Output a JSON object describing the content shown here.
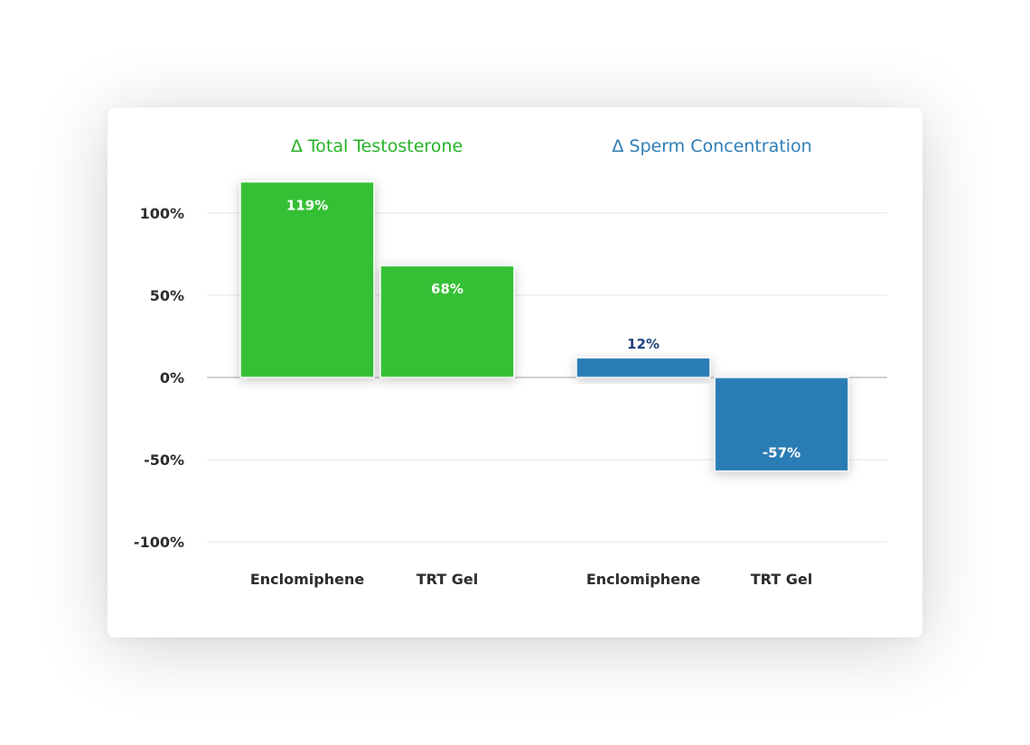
{
  "chart_data": {
    "type": "bar",
    "ylim": [
      -100,
      119
    ],
    "yticks": [
      100,
      50,
      0,
      -50,
      -100
    ],
    "ytick_labels": [
      "100%",
      "50%",
      "0%",
      "-50%",
      "-100%"
    ],
    "grid": true,
    "groups": [
      {
        "title": "Δ Total Testosterone",
        "color": "#35bf35",
        "title_color": "#22b022",
        "bars": [
          {
            "category": "Enclomiphene",
            "value": 119,
            "label": "119%"
          },
          {
            "category": "TRT Gel",
            "value": 68,
            "label": "68%"
          }
        ]
      },
      {
        "title": "Δ Sperm Concentration",
        "color": "#2a7bb4",
        "title_color": "#2a7bb4",
        "bars": [
          {
            "category": "Enclomiphene",
            "value": 12,
            "label": "12%"
          },
          {
            "category": "TRT Gel",
            "value": -57,
            "label": "-57%"
          }
        ]
      }
    ],
    "outside_label_color": "#1e3f7a",
    "inside_label_color": "#ffffff"
  }
}
